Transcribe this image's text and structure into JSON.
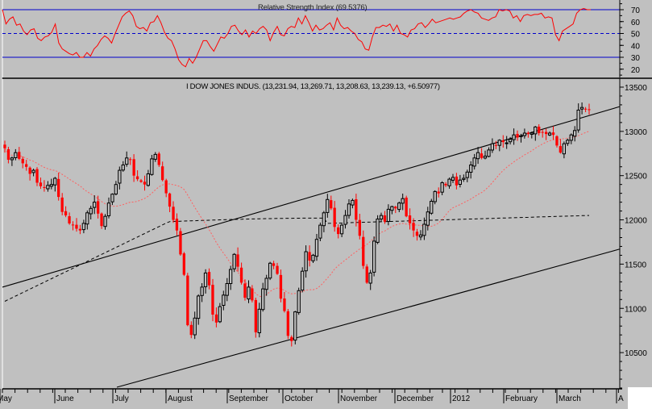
{
  "rsi_panel": {
    "title": "Relative Strength Index (69.5376)",
    "y_ticks": [
      70,
      60,
      50,
      40,
      30,
      20
    ],
    "overbought": 70,
    "midline": 50,
    "oversold": 30,
    "line_color": "#ff0000",
    "level_color": "#0000cc"
  },
  "price_panel": {
    "title": "I DOW JONES INDUS. (13,231.94, 13,269.71, 13,208.63, 13,239.13, +6.50977)",
    "y_ticks": [
      13500,
      13000,
      12500,
      12000,
      11500,
      11000,
      10500
    ],
    "up_color": "#000000",
    "down_color": "#ff0000",
    "ma_short_color": "#ff6060",
    "ma_long_color": "#000000",
    "trend_color": "#000000"
  },
  "x_axis": {
    "months": [
      "May",
      "June",
      "July",
      "August",
      "September",
      "October",
      "November",
      "December",
      "2012",
      "February",
      "March",
      "A"
    ]
  },
  "chart_data": [
    {
      "type": "line",
      "title": "Relative Strength Index (69.5376)",
      "ylabel": "RSI",
      "ylim": [
        15,
        75
      ],
      "reference_lines": [
        30,
        50,
        70
      ],
      "x_labels": [
        "May",
        "June",
        "July",
        "August",
        "September",
        "October",
        "November",
        "December",
        "2012",
        "February",
        "March"
      ],
      "series": [
        {
          "name": "RSI",
          "values": [
            70,
            58,
            62,
            64,
            57,
            58,
            52,
            49,
            53,
            54,
            46,
            44,
            47,
            48,
            51,
            58,
            42,
            37,
            35,
            33,
            32,
            34,
            30,
            30,
            34,
            31,
            37,
            40,
            45,
            48,
            46,
            42,
            50,
            57,
            64,
            67,
            69,
            65,
            56,
            54,
            55,
            52,
            59,
            60,
            65,
            59,
            51,
            46,
            44,
            37,
            28,
            24,
            22,
            29,
            25,
            30,
            37,
            44,
            44,
            39,
            35,
            41,
            47,
            46,
            50,
            56,
            57,
            52,
            49,
            53,
            47,
            52,
            50,
            54,
            56,
            53,
            44,
            51,
            56,
            49,
            48,
            54,
            56,
            55,
            63,
            58,
            65,
            59,
            52,
            57,
            53,
            54,
            57,
            59,
            53,
            63,
            57,
            54,
            55,
            52,
            50,
            45,
            43,
            37,
            36,
            47,
            55,
            55,
            57,
            56,
            58,
            52,
            57,
            50,
            49,
            47,
            53,
            54,
            58,
            59,
            55,
            58,
            62,
            59,
            60,
            61,
            62,
            63,
            62,
            63,
            64,
            67,
            69,
            70,
            68,
            67,
            63,
            62,
            61,
            63,
            64,
            70,
            69,
            70,
            69,
            63,
            65,
            60,
            65,
            66,
            65,
            66,
            66,
            67,
            63,
            64,
            63,
            49,
            44,
            52,
            54,
            56,
            58,
            67,
            70,
            71,
            70,
            70
          ]
        }
      ]
    },
    {
      "type": "candlestick",
      "title": "I DOW JONES INDUS. (13,231.94, 13,269.71, 13,208.63, 13,239.13, +6.50977)",
      "ylabel": "Price",
      "ylim": [
        10100,
        13600
      ],
      "x_labels": [
        "May",
        "June",
        "July",
        "August",
        "September",
        "October",
        "November",
        "December",
        "2012",
        "February",
        "March"
      ],
      "last_bar": {
        "open": 13231.94,
        "high": 13269.71,
        "low": 13208.63,
        "close": 13239.13,
        "change": 6.50977
      },
      "closes": [
        12810,
        12680,
        12700,
        12760,
        12690,
        12640,
        12600,
        12520,
        12560,
        12420,
        12380,
        12360,
        12390,
        12400,
        12470,
        12260,
        12090,
        12050,
        11960,
        11940,
        11900,
        11880,
        11960,
        12080,
        12130,
        12200,
        12070,
        11930,
        12040,
        12190,
        12290,
        12400,
        12560,
        12620,
        12700,
        12680,
        12500,
        12460,
        12430,
        12400,
        12520,
        12690,
        12740,
        12620,
        12450,
        12300,
        12150,
        12000,
        11880,
        11610,
        11380,
        10810,
        10700,
        10890,
        11140,
        11240,
        11400,
        11260,
        10930,
        10840,
        11020,
        11150,
        11280,
        11440,
        11610,
        11470,
        11290,
        11120,
        11240,
        11090,
        10730,
        10990,
        11220,
        11340,
        11510,
        11480,
        11390,
        11110,
        10970,
        10690,
        10630,
        10960,
        11200,
        11420,
        11640,
        11540,
        11600,
        11780,
        11940,
        12080,
        12230,
        12130,
        11920,
        11840,
        11940,
        12050,
        12180,
        12220,
        12000,
        11820,
        11480,
        11290,
        11400,
        11760,
        12010,
        12050,
        11980,
        12120,
        12150,
        12130,
        12190,
        12240,
        12040,
        11960,
        11880,
        11820,
        11830,
        11950,
        12090,
        12210,
        12320,
        12300,
        12420,
        12390,
        12460,
        12480,
        12390,
        12450,
        12470,
        12540,
        12620,
        12700,
        12760,
        12700,
        12720,
        12790,
        12860,
        12840,
        12900,
        12880,
        12870,
        12910,
        12960,
        12930,
        12950,
        12980,
        12970,
        12980,
        13050,
        12980,
        12990,
        12970,
        12980,
        12960,
        12840,
        12760,
        12860,
        12900,
        12960,
        13010,
        13240,
        13270,
        13250,
        13240
      ],
      "ma_50": "dashed red moving average",
      "ma_200": "dashed black moving average",
      "trend_channel": "two parallel ascending black trendlines"
    }
  ]
}
